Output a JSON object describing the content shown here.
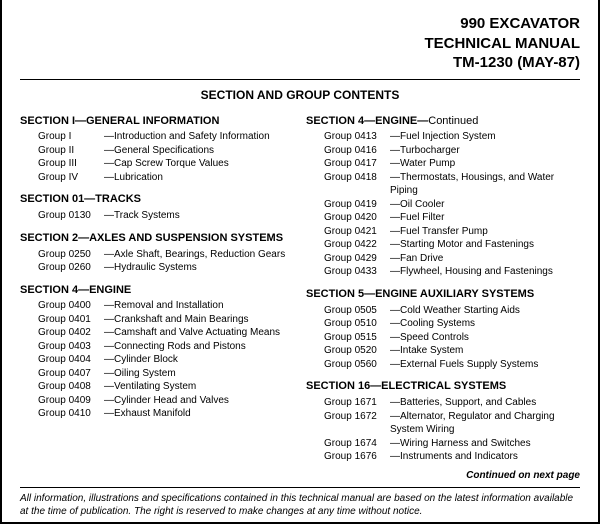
{
  "header": {
    "line1": "990 EXCAVATOR",
    "line2": "TECHNICAL MANUAL",
    "line3": "TM-1230 (MAY-87)"
  },
  "toc_title": "SECTION AND GROUP CONTENTS",
  "left": [
    {
      "title": "SECTION I—GENERAL INFORMATION",
      "groups": [
        {
          "label": "Group I",
          "name": "—Introduction and Safety Information"
        },
        {
          "label": "Group II",
          "name": "—General Specifications"
        },
        {
          "label": "Group III",
          "name": "—Cap Screw Torque Values"
        },
        {
          "label": "Group IV",
          "name": "—Lubrication"
        }
      ]
    },
    {
      "title": "SECTION 01—TRACKS",
      "groups": [
        {
          "label": "Group 0130",
          "name": "—Track Systems"
        }
      ]
    },
    {
      "title": "SECTION 2—AXLES AND SUSPENSION SYSTEMS",
      "groups": [
        {
          "label": "Group 0250",
          "name": "—Axle Shaft, Bearings, Reduction Gears"
        },
        {
          "label": "Group 0260",
          "name": "—Hydraulic Systems"
        }
      ]
    },
    {
      "title": "SECTION 4—ENGINE",
      "groups": [
        {
          "label": "Group 0400",
          "name": "—Removal and Installation"
        },
        {
          "label": "Group 0401",
          "name": "—Crankshaft and Main Bearings"
        },
        {
          "label": "Group 0402",
          "name": "—Camshaft and Valve Actuating Means"
        },
        {
          "label": "Group 0403",
          "name": "—Connecting Rods and Pistons"
        },
        {
          "label": "Group 0404",
          "name": "—Cylinder Block"
        },
        {
          "label": "Group 0407",
          "name": "—Oiling System"
        },
        {
          "label": "Group 0408",
          "name": "—Ventilating System"
        },
        {
          "label": "Group 0409",
          "name": "—Cylinder Head and Valves"
        },
        {
          "label": "Group 0410",
          "name": "—Exhaust Manifold"
        }
      ]
    }
  ],
  "right": [
    {
      "title": "SECTION 4—ENGINE—",
      "cont": "Continued",
      "groups": [
        {
          "label": "Group 0413",
          "name": "—Fuel Injection System"
        },
        {
          "label": "Group 0416",
          "name": "—Turbocharger"
        },
        {
          "label": "Group 0417",
          "name": "—Water Pump"
        },
        {
          "label": "Group 0418",
          "name": "—Thermostats, Housings, and Water Piping"
        },
        {
          "label": "Group 0419",
          "name": "—Oil Cooler"
        },
        {
          "label": "Group 0420",
          "name": "—Fuel Filter"
        },
        {
          "label": "Group 0421",
          "name": "—Fuel Transfer Pump"
        },
        {
          "label": "Group 0422",
          "name": "—Starting Motor and Fastenings"
        },
        {
          "label": "Group 0429",
          "name": "—Fan Drive"
        },
        {
          "label": "Group 0433",
          "name": "—Flywheel, Housing and Fastenings"
        }
      ]
    },
    {
      "title": "SECTION 5—ENGINE AUXILIARY SYSTEMS",
      "groups": [
        {
          "label": "Group 0505",
          "name": "—Cold Weather Starting Aids"
        },
        {
          "label": "Group 0510",
          "name": "—Cooling Systems"
        },
        {
          "label": "Group 0515",
          "name": "—Speed Controls"
        },
        {
          "label": "Group 0520",
          "name": "—Intake System"
        },
        {
          "label": "Group 0560",
          "name": "—External Fuels Supply Systems"
        }
      ]
    },
    {
      "title": "SECTION 16—ELECTRICAL SYSTEMS",
      "groups": [
        {
          "label": "Group 1671",
          "name": "—Batteries, Support, and Cables"
        },
        {
          "label": "Group 1672",
          "name": "—Alternator, Regulator and Charging System Wiring"
        },
        {
          "label": "Group 1674",
          "name": "—Wiring Harness and Switches"
        },
        {
          "label": "Group 1676",
          "name": "—Instruments and Indicators"
        }
      ]
    }
  ],
  "continued": "Continued on next page",
  "footer": "All information, illustrations and specifications contained in this technical manual are based on the latest information available at the time of publication. The right is reserved to make changes at any time without notice."
}
